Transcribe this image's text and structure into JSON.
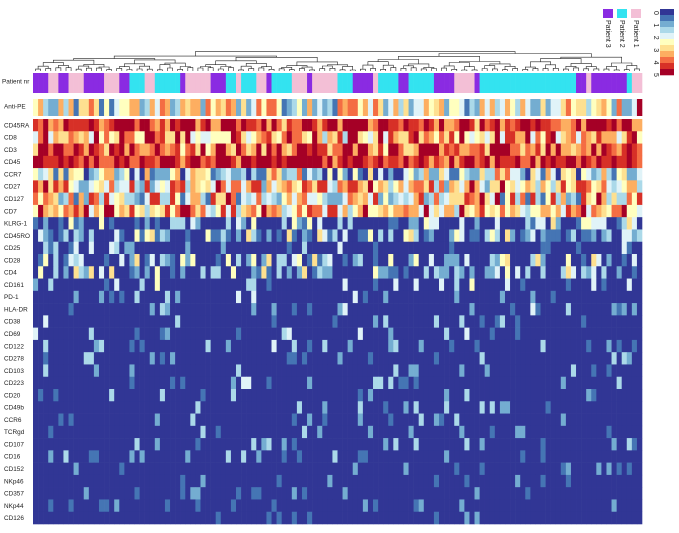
{
  "chart_data": {
    "type": "heatmap",
    "title": "",
    "colorbar": {
      "ticks": [
        "0",
        "1",
        "2",
        "3",
        "4",
        "5"
      ],
      "colors": [
        "#313695",
        "#4575b4",
        "#74add1",
        "#abd9e9",
        "#e0f3f8",
        "#ffffbf",
        "#fee090",
        "#fdae61",
        "#f46d43",
        "#d73027",
        "#a50026"
      ]
    },
    "annotation_tracks": [
      {
        "name": "Patient nr",
        "legend": [
          {
            "label": "Patient 3",
            "color": "#8a2be2"
          },
          {
            "label": "Patient 2",
            "color": "#33e3f0"
          },
          {
            "label": "Patient 1",
            "color": "#f3bfd6"
          }
        ]
      },
      {
        "name": "Anti-PE"
      }
    ],
    "rows": [
      "CD45RA",
      "CD8",
      "CD3",
      "CD45",
      "CCR7",
      "CD27",
      "CD127",
      "CD7",
      "KLRG-1",
      "CD45RO",
      "CD25",
      "CD28",
      "CD4",
      "CD161",
      "PD-1",
      "HLA-DR",
      "CD38",
      "CD69",
      "CD122",
      "CD278",
      "CD103",
      "CD223",
      "CD20",
      "CD49b",
      "CCR6",
      "TCRgd",
      "CD107",
      "CD16",
      "CD152",
      "NKp46",
      "CD357",
      "NKp44",
      "CD126"
    ],
    "row_profiles": [
      {
        "mean": 4.3,
        "spread": 0.7
      },
      {
        "mean": 3.5,
        "spread": 1.0
      },
      {
        "mean": 4.1,
        "spread": 0.8
      },
      {
        "mean": 4.5,
        "spread": 0.5
      },
      {
        "mean": 1.8,
        "spread": 1.2
      },
      {
        "mean": 2.9,
        "spread": 1.1
      },
      {
        "mean": 2.6,
        "spread": 1.2
      },
      {
        "mean": 3.2,
        "spread": 1.0
      },
      {
        "mean": 1.2,
        "spread": 1.0
      },
      {
        "mean": 1.4,
        "spread": 1.0
      },
      {
        "mean": 0.9,
        "spread": 0.9
      },
      {
        "mean": 1.3,
        "spread": 1.0
      },
      {
        "mean": 1.3,
        "spread": 1.0
      },
      {
        "mean": 0.9,
        "spread": 0.9
      },
      {
        "mean": 0.8,
        "spread": 0.9
      },
      {
        "mean": 0.8,
        "spread": 0.9
      },
      {
        "mean": 0.8,
        "spread": 0.9
      },
      {
        "mean": 0.9,
        "spread": 0.9
      },
      {
        "mean": 0.6,
        "spread": 0.8
      },
      {
        "mean": 0.5,
        "spread": 0.8
      },
      {
        "mean": 0.5,
        "spread": 0.8
      },
      {
        "mean": 0.6,
        "spread": 0.8
      },
      {
        "mean": 0.4,
        "spread": 0.7
      },
      {
        "mean": 0.5,
        "spread": 0.8
      },
      {
        "mean": 0.4,
        "spread": 0.7
      },
      {
        "mean": 0.4,
        "spread": 0.7
      },
      {
        "mean": 0.5,
        "spread": 0.8
      },
      {
        "mean": 0.5,
        "spread": 0.8
      },
      {
        "mean": 0.4,
        "spread": 0.7
      },
      {
        "mean": 0.3,
        "spread": 0.6
      },
      {
        "mean": 0.3,
        "spread": 0.6
      },
      {
        "mean": 0.3,
        "spread": 0.6
      },
      {
        "mean": 0.2,
        "spread": 0.5
      }
    ],
    "value_range": [
      0,
      5
    ],
    "n_columns": 120
  }
}
